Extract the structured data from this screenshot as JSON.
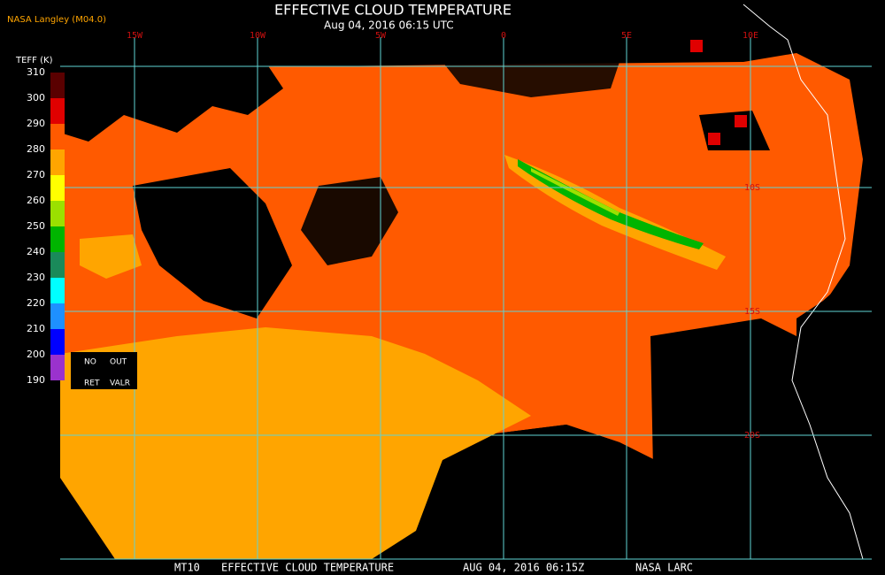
{
  "header": {
    "source": "NASA Langley (M04.0)",
    "title": "EFFECTIVE CLOUD TEMPERATURE",
    "subtitle": "Aug 04, 2016 06:15 UTC"
  },
  "legend": {
    "label": "TEFF (K)",
    "ticks": [
      310,
      300,
      290,
      280,
      270,
      260,
      250,
      240,
      230,
      220,
      210,
      200,
      190
    ],
    "colors": [
      "#5a0000",
      "#e00000",
      "#ff5a00",
      "#ffa500",
      "#ffff00",
      "#9be000",
      "#00b400",
      "#1a8a5a",
      "#00ffff",
      "#1e90ff",
      "#0000ff",
      "#9a32cd"
    ],
    "no_ret": [
      "NO",
      "RET"
    ],
    "out_valr": [
      "OUT",
      "VALR"
    ]
  },
  "grid": {
    "lon_labels": [
      "15W",
      "10W",
      "5W",
      "0",
      "5E",
      "10E"
    ],
    "lat_labels": [
      "10S",
      "15S",
      "20S"
    ]
  },
  "footer": [
    "MT10",
    "EFFECTIVE CLOUD TEMPERATURE",
    "AUG 04, 2016 06:15Z",
    "NASA LARC"
  ]
}
